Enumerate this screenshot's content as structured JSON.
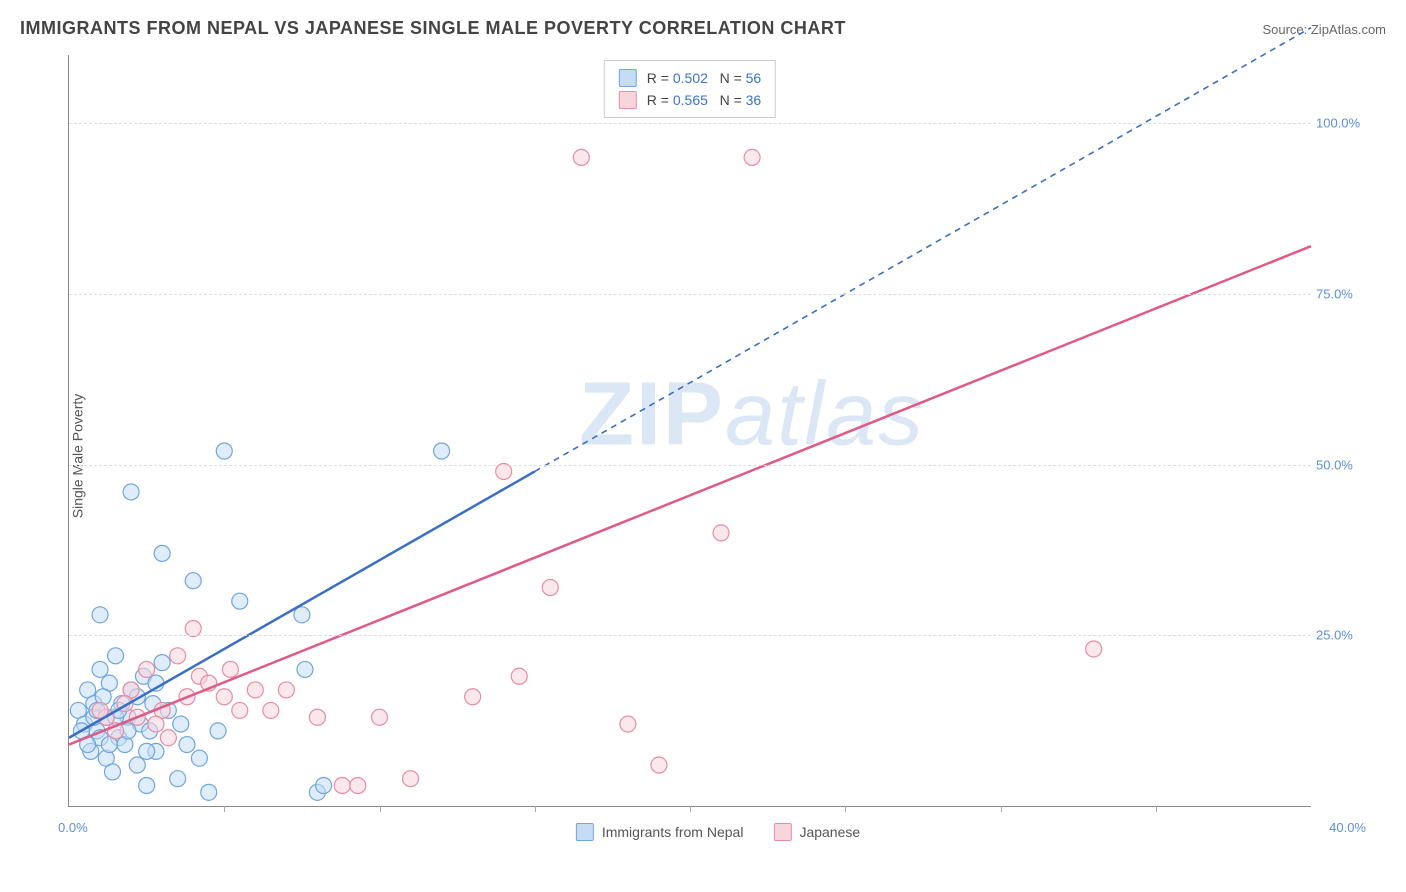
{
  "title": "IMMIGRANTS FROM NEPAL VS JAPANESE SINGLE MALE POVERTY CORRELATION CHART",
  "source_label": "Source: ZipAtlas.com",
  "y_axis_label": "Single Male Poverty",
  "watermark_bold": "ZIP",
  "watermark_rest": "atlas",
  "chart": {
    "type": "scatter",
    "xlim": [
      0,
      40
    ],
    "ylim": [
      0,
      110
    ],
    "x_origin_label": "0.0%",
    "x_max_label": "40.0%",
    "y_ticks": [
      25,
      50,
      75,
      100
    ],
    "y_tick_labels": [
      "25.0%",
      "50.0%",
      "75.0%",
      "100.0%"
    ],
    "x_minor_ticks": [
      5,
      10,
      15,
      20,
      25,
      30,
      35
    ],
    "background_color": "#ffffff",
    "grid_color": "#dddddd",
    "axis_color": "#888888",
    "tick_label_color": "#5b8fd6",
    "marker_radius": 8,
    "marker_opacity": 0.55,
    "series": [
      {
        "key": "nepal",
        "label": "Immigrants from Nepal",
        "fill": "#c5dcf4",
        "stroke": "#6fa6de",
        "line_color": "#3a6fc4",
        "R": "0.502",
        "N": "56",
        "regression": {
          "x1": 0,
          "y1": 10,
          "x2": 15,
          "y2": 49,
          "dash_extend_to_x": 40,
          "dash_extend_to_y": 114
        },
        "points": [
          [
            0.3,
            14
          ],
          [
            0.5,
            12
          ],
          [
            0.6,
            17
          ],
          [
            0.7,
            8
          ],
          [
            0.8,
            15
          ],
          [
            0.9,
            11
          ],
          [
            1.0,
            20
          ],
          [
            1.0,
            28
          ],
          [
            1.2,
            7
          ],
          [
            1.2,
            13
          ],
          [
            1.3,
            18
          ],
          [
            1.4,
            5
          ],
          [
            1.5,
            22
          ],
          [
            1.6,
            10
          ],
          [
            1.7,
            15
          ],
          [
            1.8,
            9
          ],
          [
            1.9,
            13
          ],
          [
            2.0,
            17
          ],
          [
            2.0,
            46
          ],
          [
            2.2,
            6
          ],
          [
            2.3,
            12
          ],
          [
            2.4,
            19
          ],
          [
            2.5,
            3
          ],
          [
            2.6,
            11
          ],
          [
            2.7,
            15
          ],
          [
            2.8,
            8
          ],
          [
            3.0,
            21
          ],
          [
            3.0,
            37
          ],
          [
            3.2,
            14
          ],
          [
            3.5,
            4
          ],
          [
            3.6,
            12
          ],
          [
            3.8,
            9
          ],
          [
            4.0,
            33
          ],
          [
            4.2,
            7
          ],
          [
            4.5,
            2
          ],
          [
            4.8,
            11
          ],
          [
            5.0,
            52
          ],
          [
            5.5,
            30
          ],
          [
            7.5,
            28
          ],
          [
            7.6,
            20
          ],
          [
            8.0,
            2
          ],
          [
            8.2,
            3
          ],
          [
            12.0,
            52
          ],
          [
            1.0,
            10
          ],
          [
            1.5,
            13
          ],
          [
            0.8,
            13
          ],
          [
            1.1,
            16
          ],
          [
            1.3,
            9
          ],
          [
            1.6,
            14
          ],
          [
            1.9,
            11
          ],
          [
            2.2,
            16
          ],
          [
            2.5,
            8
          ],
          [
            0.4,
            11
          ],
          [
            0.6,
            9
          ],
          [
            0.9,
            14
          ],
          [
            2.8,
            18
          ]
        ]
      },
      {
        "key": "japanese",
        "label": "Japanese",
        "fill": "#f7d5dd",
        "stroke": "#e88ba3",
        "line_color": "#e05a84",
        "R": "0.565",
        "N": "36",
        "regression": {
          "x1": 0,
          "y1": 9,
          "x2": 40,
          "y2": 82
        },
        "points": [
          [
            1.5,
            11
          ],
          [
            2.0,
            17
          ],
          [
            2.5,
            20
          ],
          [
            3.0,
            14
          ],
          [
            3.5,
            22
          ],
          [
            4.0,
            26
          ],
          [
            4.2,
            19
          ],
          [
            5.0,
            16
          ],
          [
            5.5,
            14
          ],
          [
            6.0,
            17
          ],
          [
            6.5,
            14
          ],
          [
            7.0,
            17
          ],
          [
            8.0,
            13
          ],
          [
            8.8,
            3
          ],
          [
            9.3,
            3
          ],
          [
            10.0,
            13
          ],
          [
            11.0,
            4
          ],
          [
            13.0,
            16
          ],
          [
            14.0,
            49
          ],
          [
            14.5,
            19
          ],
          [
            15.5,
            32
          ],
          [
            16.5,
            95
          ],
          [
            18.0,
            12
          ],
          [
            19.0,
            6
          ],
          [
            21.0,
            40
          ],
          [
            22.0,
            95
          ],
          [
            33.0,
            23
          ],
          [
            3.8,
            16
          ],
          [
            2.2,
            13
          ],
          [
            1.8,
            15
          ],
          [
            4.5,
            18
          ],
          [
            1.2,
            13
          ],
          [
            2.8,
            12
          ],
          [
            3.2,
            10
          ],
          [
            1.0,
            14
          ],
          [
            5.2,
            20
          ]
        ]
      }
    ]
  },
  "legend_top_format": {
    "R_prefix": "R = ",
    "N_prefix": "N = "
  }
}
